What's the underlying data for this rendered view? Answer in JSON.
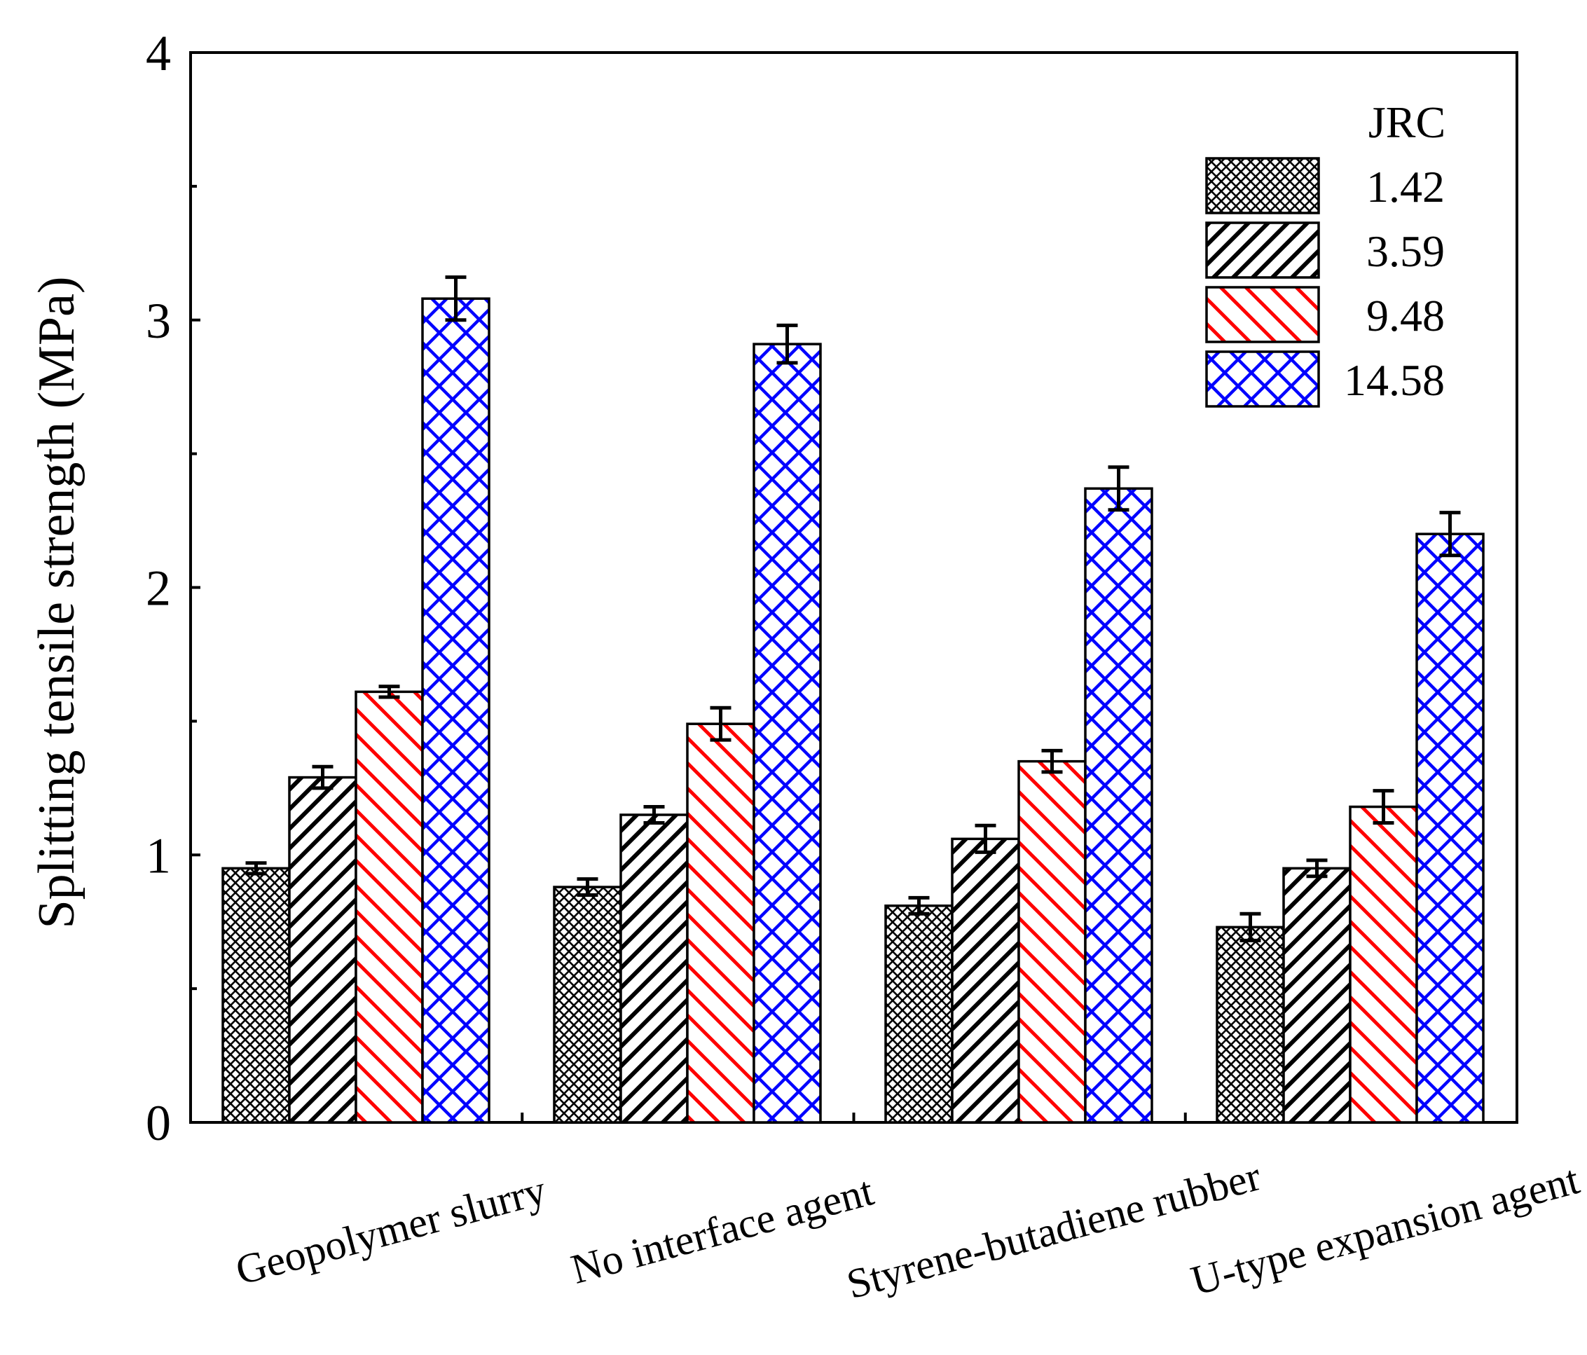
{
  "chart_data": {
    "type": "bar",
    "title": "",
    "xlabel": "",
    "ylabel": "Splitting tensile strength (MPa)",
    "ylim": [
      0,
      4
    ],
    "yticks": [
      "0",
      "1",
      "2",
      "3",
      "4"
    ],
    "categories": [
      "Geopolymer slurry",
      "No interface agent",
      "Styrene-butadiene rubber",
      "U-type expansion agent"
    ],
    "legend": {
      "title": "JRC",
      "position": "top-right"
    },
    "series": [
      {
        "name": "1.42",
        "pattern": "fine-crosshatch",
        "color": "#000000",
        "values": [
          0.95,
          0.88,
          0.81,
          0.73
        ],
        "errors": [
          0.02,
          0.03,
          0.03,
          0.05
        ]
      },
      {
        "name": "3.59",
        "pattern": "diagonal-up",
        "color": "#000000",
        "values": [
          1.29,
          1.15,
          1.06,
          0.95
        ],
        "errors": [
          0.04,
          0.03,
          0.05,
          0.03
        ]
      },
      {
        "name": "9.48",
        "pattern": "diagonal-down",
        "color": "#ff0000",
        "values": [
          1.61,
          1.49,
          1.35,
          1.18
        ],
        "errors": [
          0.02,
          0.06,
          0.04,
          0.06
        ]
      },
      {
        "name": "14.58",
        "pattern": "crosshatch",
        "color": "#0000ff",
        "values": [
          3.08,
          2.91,
          2.37,
          2.2
        ],
        "errors": [
          0.08,
          0.07,
          0.08,
          0.08
        ]
      }
    ]
  }
}
